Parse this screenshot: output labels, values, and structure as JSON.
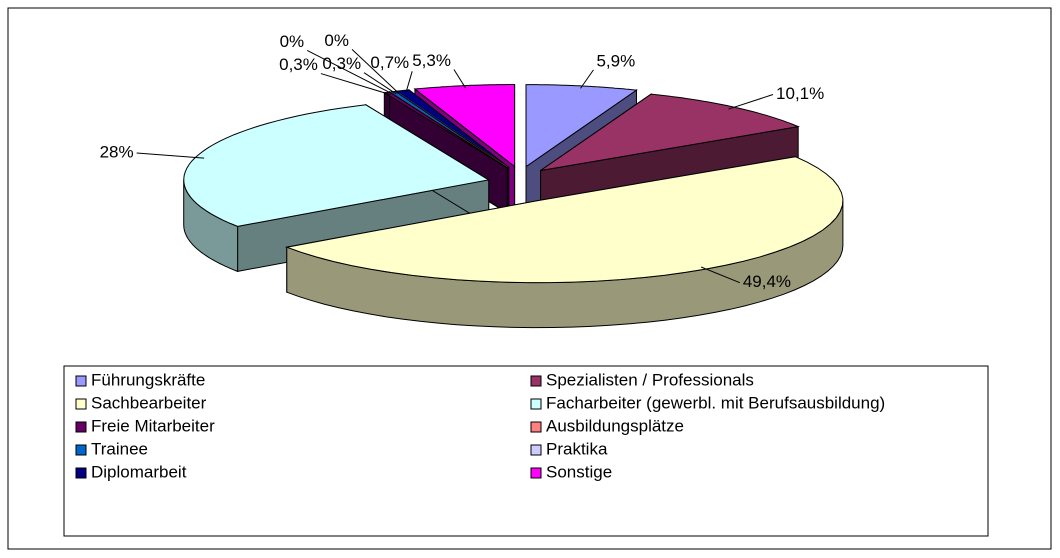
{
  "chart_data": {
    "type": "pie3d",
    "categories": [
      "Führungskräfte",
      "Spezialisten / Professionals",
      "Sachbearbeiter",
      "Facharbeiter (gewerbl. mit Berufsausbildung)",
      "Freie Mitarbeiter",
      "Ausbildungsplätze",
      "Trainee",
      "Praktika",
      "Diplomarbeit",
      "Sonstige"
    ],
    "values": [
      5.9,
      10.1,
      49.4,
      28,
      0.3,
      0,
      0.3,
      0,
      0.7,
      5.3
    ],
    "value_labels": [
      "5,9%",
      "10,1%",
      "49,4%",
      "28%",
      "0,3%",
      "0%",
      "0,3%",
      "0%",
      "0,7%",
      "5,3%"
    ],
    "colors": [
      "#9999ff",
      "#993366",
      "#ffffcc",
      "#ccffff",
      "#660066",
      "#ff8080",
      "#0066cc",
      "#ccccff",
      "#000080",
      "#ff00ff"
    ],
    "legend": "bottom"
  }
}
